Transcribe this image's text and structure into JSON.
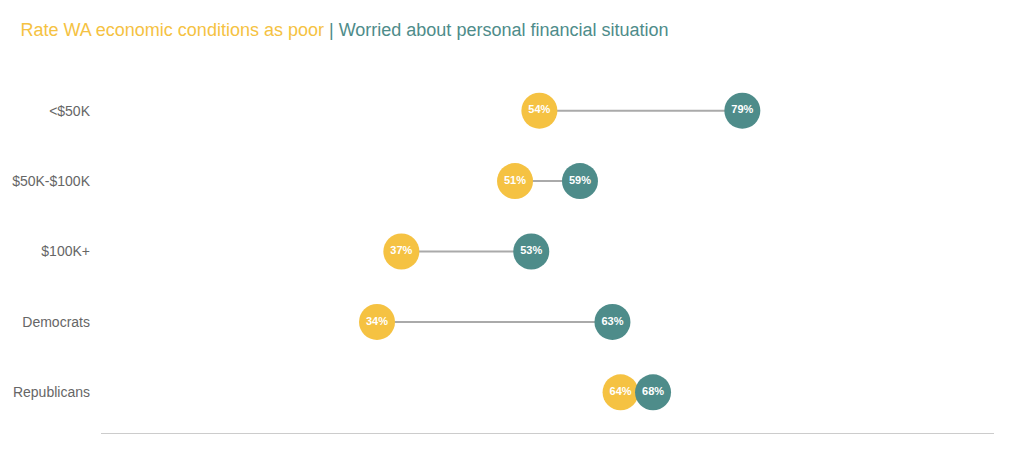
{
  "chart_data": {
    "type": "dumbbell",
    "title": "Rate WA economic conditions as poor | Worried about personal financial situation",
    "categories": [
      "<$50K",
      "$50K-$100K",
      "$100K+",
      "Democrats",
      "Republicans"
    ],
    "series": [
      {
        "name": "Rate WA economic conditions as poor",
        "color": "#F5C242",
        "values": [
          54,
          51,
          37,
          34,
          64
        ],
        "value_labels": [
          "54%",
          "51%",
          "37%",
          "34%",
          "64%"
        ]
      },
      {
        "name": "Worried about personal financial situation",
        "color": "#4E8C8A",
        "values": [
          79,
          59,
          53,
          63,
          68
        ],
        "value_labels": [
          "79%",
          "59%",
          "53%",
          "63%",
          "68%"
        ]
      }
    ],
    "xlim": [
      0,
      110
    ],
    "data_labels": true,
    "tick_labels": "y",
    "grid": false
  }
}
